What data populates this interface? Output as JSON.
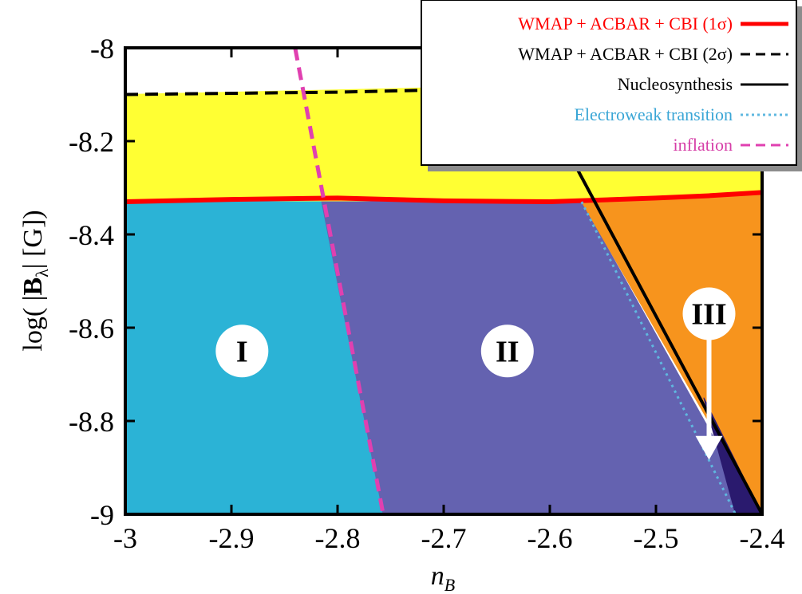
{
  "chart_data": {
    "type": "area",
    "title": "",
    "xlabel_main": "n",
    "xlabel_sub": "B",
    "ylabel_prefix": "log( |",
    "ylabel_bold": "B",
    "ylabel_sub": "λ",
    "ylabel_suffix": "| [G])",
    "xlim": [
      -3,
      -2.4
    ],
    "ylim": [
      -9,
      -8
    ],
    "x_ticks": [
      -3,
      -2.9,
      -2.8,
      -2.7,
      -2.6,
      -2.5,
      -2.4
    ],
    "x_tick_labels": [
      "-3",
      "-2.9",
      "-2.8",
      "-2.7",
      "-2.6",
      "-2.5",
      "-2.4"
    ],
    "y_ticks": [
      -9,
      -8.8,
      -8.6,
      -8.4,
      -8.2,
      -8
    ],
    "y_tick_labels": [
      "-9",
      "-8.8",
      "-8.6",
      "-8.4",
      "-8.2",
      "-8"
    ],
    "grid": false,
    "legend_position": "top-right",
    "regions": [
      {
        "color": "#ffff33",
        "points": [
          [
            -3,
            -8.1
          ],
          [
            -2.6,
            -8.08
          ],
          [
            -2.4,
            -8.08
          ],
          [
            -2.4,
            -8.31
          ],
          [
            -2.57,
            -8.33
          ],
          [
            -2.7,
            -8.33
          ],
          [
            -2.82,
            -8.33
          ],
          [
            -3,
            -8.33
          ]
        ]
      },
      {
        "color": "#2bb3d6",
        "points": [
          [
            -3,
            -8.33
          ],
          [
            -2.815,
            -8.33
          ],
          [
            -2.757,
            -9
          ],
          [
            -3,
            -9
          ]
        ]
      },
      {
        "color": "#6462b0",
        "points": [
          [
            -2.815,
            -8.33
          ],
          [
            -2.57,
            -8.33
          ],
          [
            -2.405,
            -9
          ],
          [
            -2.757,
            -9
          ]
        ]
      },
      {
        "color": "#f7941d",
        "points": [
          [
            -2.57,
            -8.33
          ],
          [
            -2.4,
            -8.31
          ],
          [
            -2.4,
            -9
          ]
        ]
      },
      {
        "color": "#2a1a6e",
        "points": [
          [
            -2.455,
            -8.75
          ],
          [
            -2.4,
            -9
          ],
          [
            -2.425,
            -9
          ]
        ]
      }
    ],
    "series": [
      {
        "name": "WMAP + ACBAR + CBI (1σ)",
        "color": "#ff0000",
        "dash": "solid",
        "width": 6,
        "points": [
          [
            -3,
            -8.33
          ],
          [
            -2.9,
            -8.325
          ],
          [
            -2.8,
            -8.322
          ],
          [
            -2.7,
            -8.328
          ],
          [
            -2.6,
            -8.33
          ],
          [
            -2.5,
            -8.322
          ],
          [
            -2.45,
            -8.317
          ],
          [
            -2.4,
            -8.31
          ]
        ]
      },
      {
        "name": "WMAP + ACBAR + CBI (2σ)",
        "color": "#000000",
        "dash": "dashed",
        "width": 4,
        "points": [
          [
            -3,
            -8.1
          ],
          [
            -2.8,
            -8.095
          ],
          [
            -2.6,
            -8.085
          ],
          [
            -2.4,
            -8.08
          ]
        ]
      },
      {
        "name": "Nucleosynthesis",
        "color": "#000000",
        "dash": "solid",
        "width": 4,
        "points": [
          [
            -2.6,
            -8.15
          ],
          [
            -2.4,
            -9
          ]
        ]
      },
      {
        "name": "Electroweak transition",
        "color": "#5fb8e0",
        "dash": "dotted",
        "width": 3,
        "points": [
          [
            -2.57,
            -8.33
          ],
          [
            -2.425,
            -9
          ]
        ]
      },
      {
        "name": "inflation",
        "color": "#e040b0",
        "dash": "dashed",
        "width": 5,
        "points": [
          [
            -2.84,
            -8.0
          ],
          [
            -2.757,
            -9
          ]
        ]
      }
    ],
    "annotations": [
      {
        "label": "I",
        "x": -2.89,
        "y": -8.65
      },
      {
        "label": "II",
        "x": -2.64,
        "y": -8.65
      },
      {
        "label": "III",
        "x": -2.45,
        "y": -8.57,
        "arrow_to": [
          -2.45,
          -8.88
        ]
      }
    ],
    "legend": [
      {
        "label": "WMAP + ACBAR + CBI (1σ)",
        "text_color": "#ff0000",
        "line_color": "#ff0000",
        "dash": "solid"
      },
      {
        "label": "WMAP + ACBAR + CBI (2σ)",
        "text_color": "#000000",
        "line_color": "#000000",
        "dash": "dashed"
      },
      {
        "label": "Nucleosynthesis",
        "text_color": "#000000",
        "line_color": "#000000",
        "dash": "solid"
      },
      {
        "label": "Electroweak transition",
        "text_color": "#3aa6d6",
        "line_color": "#5fb8e0",
        "dash": "dotted"
      },
      {
        "label": "inflation",
        "text_color": "#d63fa8",
        "line_color": "#e040b0",
        "dash": "dashed"
      }
    ]
  }
}
